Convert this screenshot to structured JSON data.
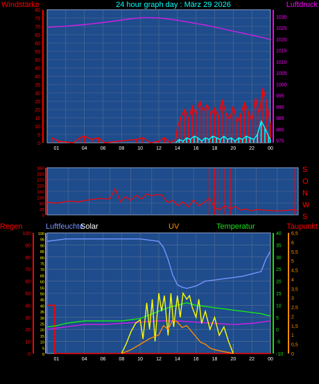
{
  "header": {
    "left": "Windstärke",
    "title": "24 hour graph day : März 29 2026",
    "right": "Luftdruck"
  },
  "wind_dir_letters": [
    "S",
    "O",
    "N",
    "W",
    "S"
  ],
  "bottom_labels": {
    "regen": "Regen",
    "luftfeuchte": "Luftfeuchte",
    "solar": "Solar",
    "uv": "UV",
    "temperatur": "Temperatur",
    "taupunkt": "Taupunkt"
  },
  "colors": {
    "bg": "#000000",
    "plot": "#1e4c8c",
    "grid": "#5a6e94",
    "red": "#ff0000",
    "magenta": "#d21ee6",
    "cyan": "#00ffff",
    "blue": "#3232ff",
    "yellow": "#ffff00",
    "green": "#19e619",
    "orange": "#ff8c00",
    "lavender": "#7896ff"
  },
  "chart_data": [
    {
      "type": "line",
      "name": "wind-pressure",
      "x_ticks": [
        "01",
        "04",
        "06",
        "08",
        "10",
        "12",
        "14",
        "16",
        "18",
        "20",
        "22",
        "00"
      ],
      "left_axis": {
        "label": "Windstärke",
        "ticks": [
          0,
          5,
          10,
          15,
          20,
          25,
          30,
          35,
          40,
          45,
          50,
          55,
          60,
          65,
          70,
          75,
          80
        ],
        "ylim": [
          0,
          80
        ]
      },
      "right_axis": {
        "label": "Luftdruck",
        "ticks": [
          975,
          980,
          985,
          990,
          995,
          1000,
          1005,
          1010,
          1015,
          1020,
          1025,
          1030
        ],
        "ylim": [
          974,
          1033
        ]
      },
      "series": [
        {
          "id": "pressure",
          "color": "#d21ee6",
          "axis": "right",
          "x": [
            0,
            2,
            4,
            6,
            8,
            9,
            10,
            11,
            12,
            13,
            14,
            15,
            16,
            17,
            18,
            19,
            20,
            21,
            22,
            23,
            24
          ],
          "y": [
            1025.2,
            1025.7,
            1026.4,
            1027.3,
            1028.4,
            1029.0,
            1029.4,
            1029.5,
            1029.3,
            1028.9,
            1028.3,
            1027.6,
            1026.9,
            1026.2,
            1025.3,
            1024.4,
            1023.5,
            1022.6,
            1021.7,
            1020.8,
            1019.8
          ]
        },
        {
          "id": "wind-gust",
          "color": "#ff0000",
          "axis": "left",
          "x": [
            0.5,
            1.2,
            2.8,
            3.5,
            4.0,
            4.8,
            5.5,
            6.2,
            7.8,
            9.6,
            10.3,
            11.1,
            12.0,
            12.6,
            13.2,
            13.8,
            14.0,
            14.4,
            14.8,
            15.2,
            15.6,
            16.0,
            16.4,
            16.8,
            17.2,
            17.6,
            18.0,
            18.4,
            18.8,
            19.2,
            19.6,
            20.0,
            20.4,
            20.8,
            21.2,
            21.6,
            22.0,
            22.4,
            22.8,
            23.2,
            23.6,
            24.0
          ],
          "y": [
            3,
            1,
            0,
            3,
            4,
            2,
            3,
            0,
            1,
            2,
            3,
            0,
            1,
            3,
            0,
            2,
            9,
            16,
            20,
            14,
            22,
            17,
            25,
            19,
            23,
            17,
            21,
            15,
            26,
            18,
            14,
            22,
            12,
            17,
            24,
            19,
            13,
            27,
            17,
            33,
            24,
            10
          ]
        },
        {
          "id": "wind-avg",
          "color": "#00ffff",
          "axis": "left",
          "x": [
            13.8,
            14.2,
            14.6,
            15.0,
            15.4,
            15.8,
            16.2,
            16.6,
            17.0,
            17.4,
            17.8,
            18.2,
            18.6,
            19.0,
            19.4,
            19.8,
            20.2,
            20.6,
            21.0,
            21.4,
            21.8,
            22.2,
            22.6,
            23.0,
            23.4,
            23.8,
            24.0
          ],
          "y": [
            0,
            2,
            1,
            3,
            2,
            4,
            3,
            1,
            3,
            2,
            4,
            3,
            2,
            4,
            2,
            3,
            1,
            3,
            2,
            4,
            3,
            2,
            5,
            13,
            9,
            4,
            2
          ]
        }
      ]
    },
    {
      "type": "line",
      "name": "wind-direction",
      "left_axis": {
        "ticks": [
          0,
          45,
          90,
          135,
          180,
          225,
          270,
          315,
          360
        ],
        "ylim": [
          0,
          360
        ]
      },
      "series": [
        {
          "id": "direction",
          "color": "#ff0000",
          "x": [
            0,
            1,
            2,
            3,
            4,
            5,
            6,
            6.5,
            7,
            7.5,
            8,
            8.5,
            9,
            9.5,
            10,
            10.5,
            11,
            11.5,
            12,
            12.5,
            13,
            13.5,
            14,
            14.5,
            15,
            15.5,
            16,
            16.5,
            17,
            17.5,
            18,
            18.5,
            19,
            19.5,
            20,
            21,
            22,
            23,
            23.5,
            24
          ],
          "y": [
            95,
            90,
            105,
            100,
            115,
            125,
            120,
            200,
            100,
            140,
            110,
            150,
            120,
            160,
            145,
            155,
            150,
            95,
            110,
            70,
            100,
            60,
            115,
            70,
            95,
            130,
            55,
            40,
            70,
            45,
            65,
            35,
            45,
            30,
            40,
            35,
            30,
            35,
            40,
            30
          ]
        }
      ]
    },
    {
      "type": "line",
      "name": "rain-humidity-solar-uv-temp-dew",
      "x_ticks": [
        "01",
        "04",
        "06",
        "08",
        "10",
        "12",
        "14",
        "16",
        "18",
        "20",
        "22",
        "00"
      ],
      "regen_axis": {
        "label": "Regen",
        "ticks": [
          0,
          10,
          20,
          30,
          40,
          50,
          60,
          70,
          80,
          90,
          100
        ],
        "ylim": [
          0,
          100
        ]
      },
      "solar_axis": {
        "label": "Solar",
        "ticks": [
          0,
          5,
          10,
          15,
          20,
          25,
          30,
          35,
          40,
          45,
          50,
          55,
          60,
          65,
          70,
          75,
          80,
          85,
          90,
          95,
          100
        ],
        "ylim": [
          0,
          100
        ]
      },
      "uv_axis": {
        "label": "UV",
        "ticks": [
          0,
          0.5,
          1,
          1.5,
          2,
          2.5,
          3,
          3.5,
          4,
          4.5,
          5,
          5.5,
          6,
          6.5
        ],
        "ylim": [
          0,
          6.5
        ]
      },
      "temp_axis": {
        "label": "Temperatur",
        "ticks": [
          -10,
          -5,
          0,
          5,
          10,
          15,
          20,
          25,
          30,
          35,
          40
        ],
        "ylim": [
          -10,
          40
        ]
      },
      "series": [
        {
          "id": "humidity",
          "color": "#7896ff",
          "axis": "regen",
          "x": [
            0,
            1,
            2,
            4,
            6,
            8,
            9,
            10,
            11,
            12,
            12.5,
            13,
            13.5,
            14,
            14.5,
            15,
            15.5,
            16,
            16.5,
            17,
            18,
            19,
            20,
            21,
            22,
            23,
            23.5,
            24
          ],
          "y": [
            93,
            94,
            95,
            95,
            95,
            95,
            95,
            95,
            94,
            93,
            88,
            78,
            65,
            57,
            55,
            54,
            55,
            56,
            58,
            60,
            61,
            62,
            63,
            64,
            66,
            68,
            78,
            85
          ]
        },
        {
          "id": "rain",
          "color": "#ff0000",
          "axis": "regen",
          "x": [
            0,
            0.8,
            0.8,
            24
          ],
          "y": [
            40,
            40,
            0,
            0
          ]
        },
        {
          "id": "temperature",
          "color": "#19e619",
          "axis": "temp",
          "x": [
            0,
            1,
            2,
            4,
            6,
            8,
            9,
            10,
            11,
            12,
            13,
            14,
            15,
            16,
            17,
            18,
            19,
            20,
            21,
            22,
            23,
            24
          ],
          "y": [
            1,
            1.5,
            2.5,
            3.5,
            3.5,
            3.5,
            4,
            4.5,
            6,
            7.5,
            9,
            10,
            11,
            10,
            9.5,
            9,
            8.5,
            8,
            7.5,
            7,
            6.5,
            5.5
          ]
        },
        {
          "id": "dewpoint",
          "color": "#d21ee6",
          "axis": "temp",
          "x": [
            0,
            2,
            4,
            6,
            8,
            10,
            12,
            14,
            16,
            18,
            20,
            22,
            24
          ],
          "y": [
            0,
            1,
            2,
            2,
            2.5,
            3,
            3.5,
            3.5,
            3,
            2.5,
            2,
            2.5,
            3.5
          ]
        },
        {
          "id": "solar",
          "color": "#ffff00",
          "axis": "solar",
          "x": [
            8,
            8.5,
            9,
            9.5,
            10,
            10.3,
            10.7,
            11,
            11.3,
            11.6,
            12,
            12.3,
            12.6,
            13,
            13.3,
            13.6,
            14,
            14.3,
            14.6,
            15,
            15.3,
            15.6,
            16,
            16.3,
            16.6,
            17,
            17.5,
            18,
            18.5,
            19,
            19.5,
            20
          ],
          "y": [
            0,
            8,
            18,
            25,
            28,
            12,
            42,
            20,
            45,
            10,
            50,
            35,
            48,
            15,
            50,
            22,
            48,
            30,
            50,
            45,
            48,
            38,
            30,
            45,
            25,
            35,
            20,
            30,
            15,
            22,
            10,
            0
          ]
        },
        {
          "id": "uv",
          "color": "#ff8c00",
          "axis": "uv",
          "x": [
            8,
            9,
            10,
            11,
            12,
            12.5,
            13,
            13.5,
            14,
            14.5,
            15,
            15.5,
            16,
            16.5,
            17,
            17.5,
            18,
            19,
            20
          ],
          "y": [
            0,
            0.2,
            0.5,
            0.8,
            1.0,
            1.5,
            1.3,
            1.8,
            1.7,
            1.4,
            1.5,
            1.2,
            0.9,
            0.6,
            0.5,
            0.3,
            0.2,
            0.1,
            0
          ]
        }
      ]
    }
  ]
}
